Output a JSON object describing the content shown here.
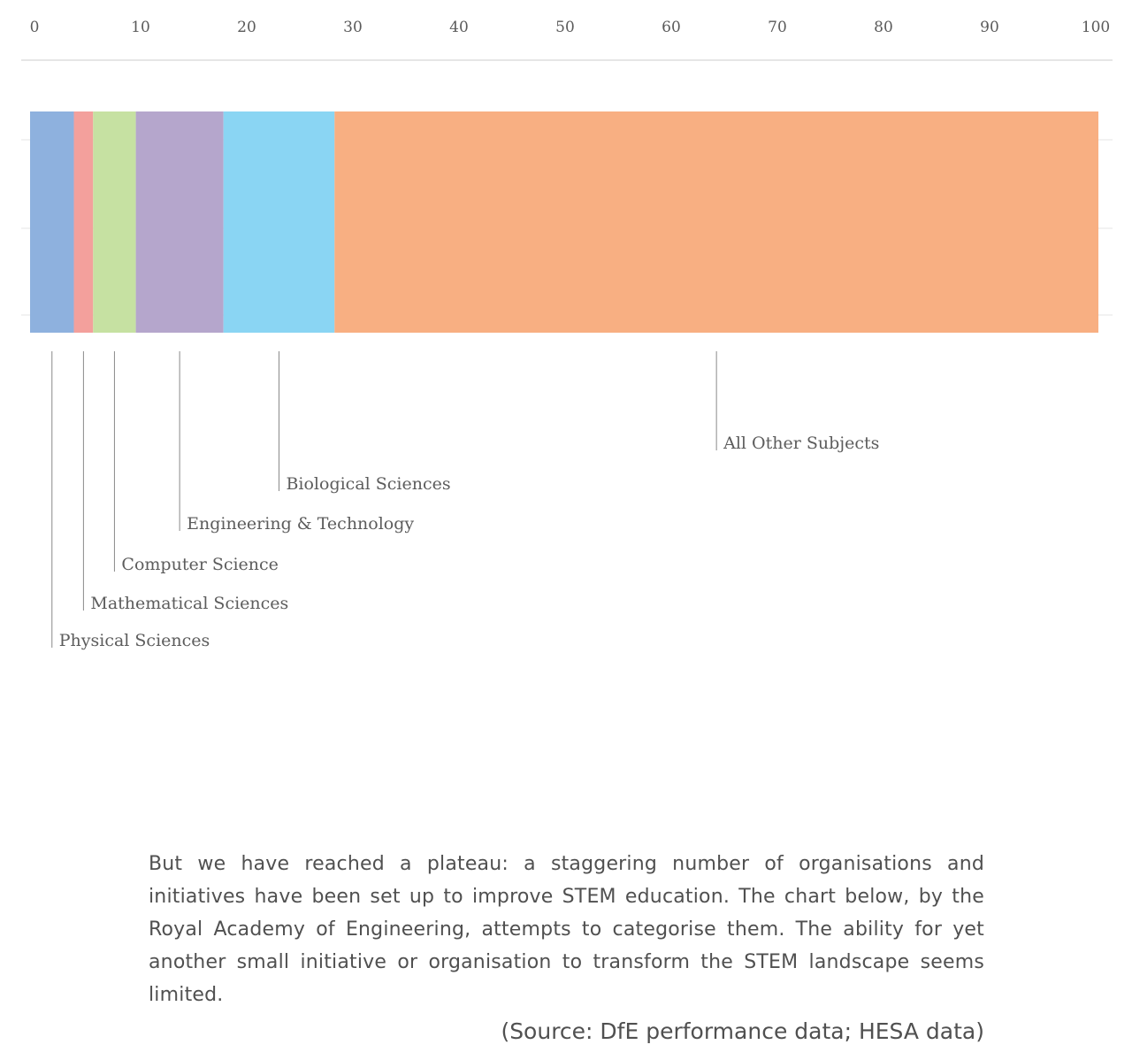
{
  "chart_data": {
    "type": "bar",
    "orientation": "horizontal",
    "stacked": true,
    "x_ticks": [
      "0",
      "10",
      "20",
      "30",
      "40",
      "50",
      "60",
      "70",
      "80",
      "90",
      "100"
    ],
    "xlim": [
      0,
      100
    ],
    "grid": true,
    "series": [
      {
        "name": "Physical Sciences",
        "value": 4.1,
        "color": "#8eb1de"
      },
      {
        "name": "Mathematical Sciences",
        "value": 1.8,
        "color": "#f3a09c"
      },
      {
        "name": "Computer Science",
        "value": 4.0,
        "color": "#c6e1a2"
      },
      {
        "name": "Engineering & Technology",
        "value": 8.2,
        "color": "#b5a6cc"
      },
      {
        "name": "Biological Sciences",
        "value": 10.4,
        "color": "#8ad5f3"
      },
      {
        "name": "All Other Subjects",
        "value": 71.5,
        "color": "#f8af82"
      }
    ]
  },
  "article": {
    "paragraph": "But we have reached a plateau: a staggering number of organisations and initiatives have been set up to improve STEM education. The chart below, by the Royal Academy of Engineering, attempts to categorise them. The ability for yet another small initiative or organisation to transform the STEM landscape seems limited.",
    "source": "(Source: DfE performance data; HESA data)"
  }
}
